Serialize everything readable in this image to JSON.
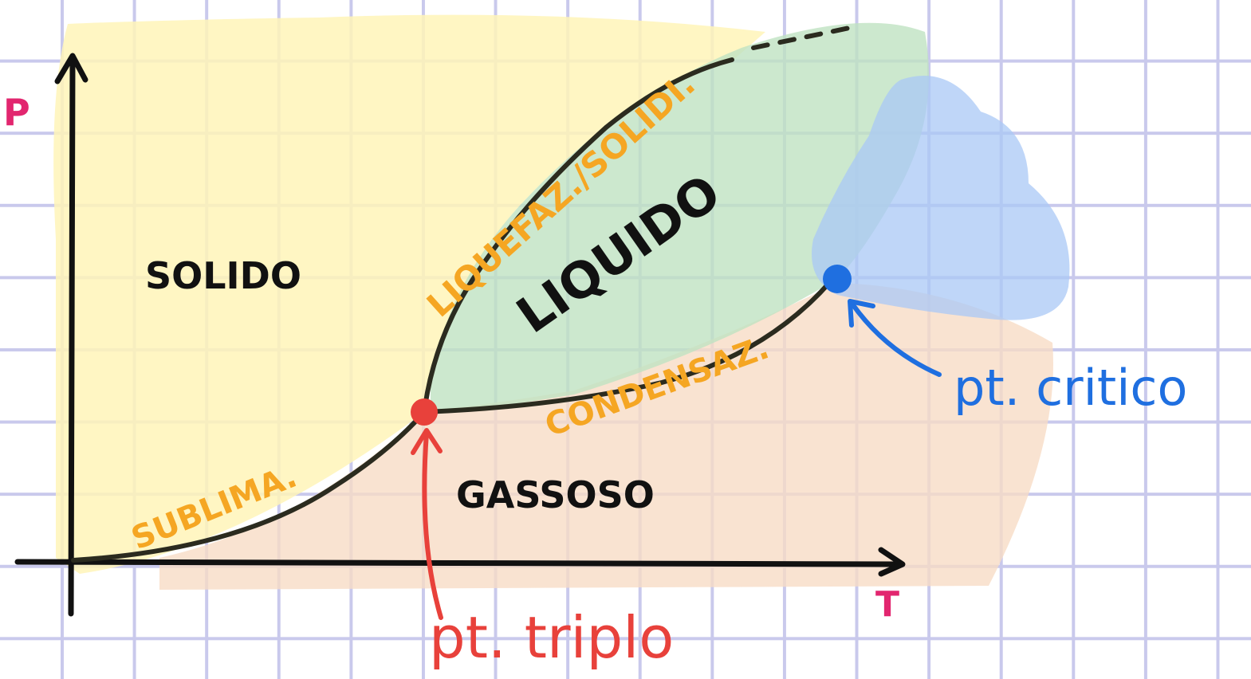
{
  "axes": {
    "y_label": "P",
    "x_label": "T"
  },
  "regions": {
    "solid": "SOLIDO",
    "liquid": "LIQUIDO",
    "gas": "GASSOSO"
  },
  "curves": {
    "sublimation": "SUBLIMA.",
    "melting": "LIQUEFAZ./SOLIDI.",
    "condensation": "CONDENSAZ."
  },
  "points": {
    "triple": "pt. triplo",
    "critical": "pt. critico"
  },
  "colors": {
    "grid": "#c9c9ec",
    "axis": "#111111",
    "curve": "#2b2b1f",
    "solid_fill": "#fff4b8",
    "liquid_fill": "#bfe2c2",
    "gas_fill": "#f8dcc6",
    "supercritical_fill": "#a9c8f5",
    "curve_label": "#f5a623",
    "triple_point": "#e8413b",
    "critical_point": "#1f6fe0",
    "axis_label": "#e2266f",
    "region_text": "#111111"
  }
}
